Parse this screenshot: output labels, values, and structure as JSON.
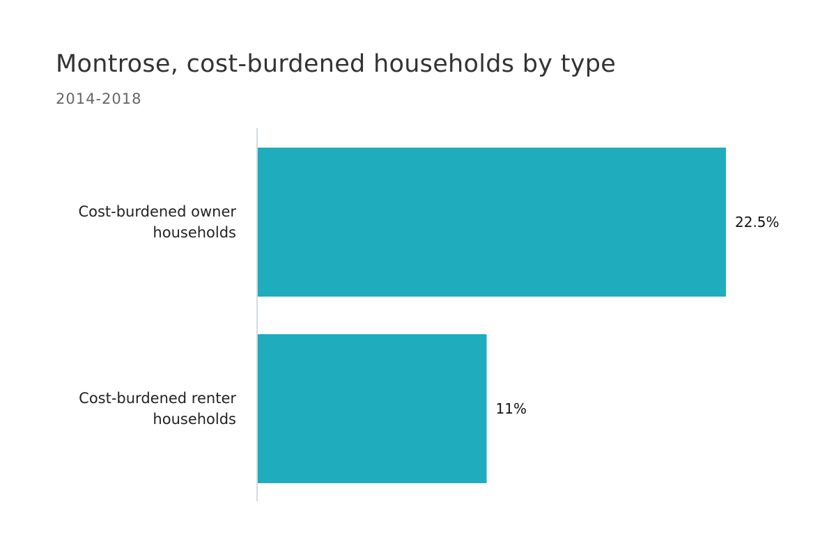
{
  "chart_data": {
    "type": "bar",
    "orientation": "horizontal",
    "title": "Montrose, cost-burdened households by type",
    "subtitle": "2014-2018",
    "categories": [
      [
        "Cost-burdened owner",
        "households"
      ],
      [
        "Cost-burdened renter",
        "households"
      ]
    ],
    "values": [
      22.5,
      11
    ],
    "value_labels": [
      "22.5%",
      "11%"
    ],
    "unit": "%",
    "xlim": [
      0,
      22.5
    ],
    "grid": false,
    "legend": "none",
    "colors": {
      "bar": "#1FACBC",
      "axis": "#C5CDD8",
      "text": "#222222",
      "title": "#333333",
      "subtitle": "#666666"
    }
  }
}
